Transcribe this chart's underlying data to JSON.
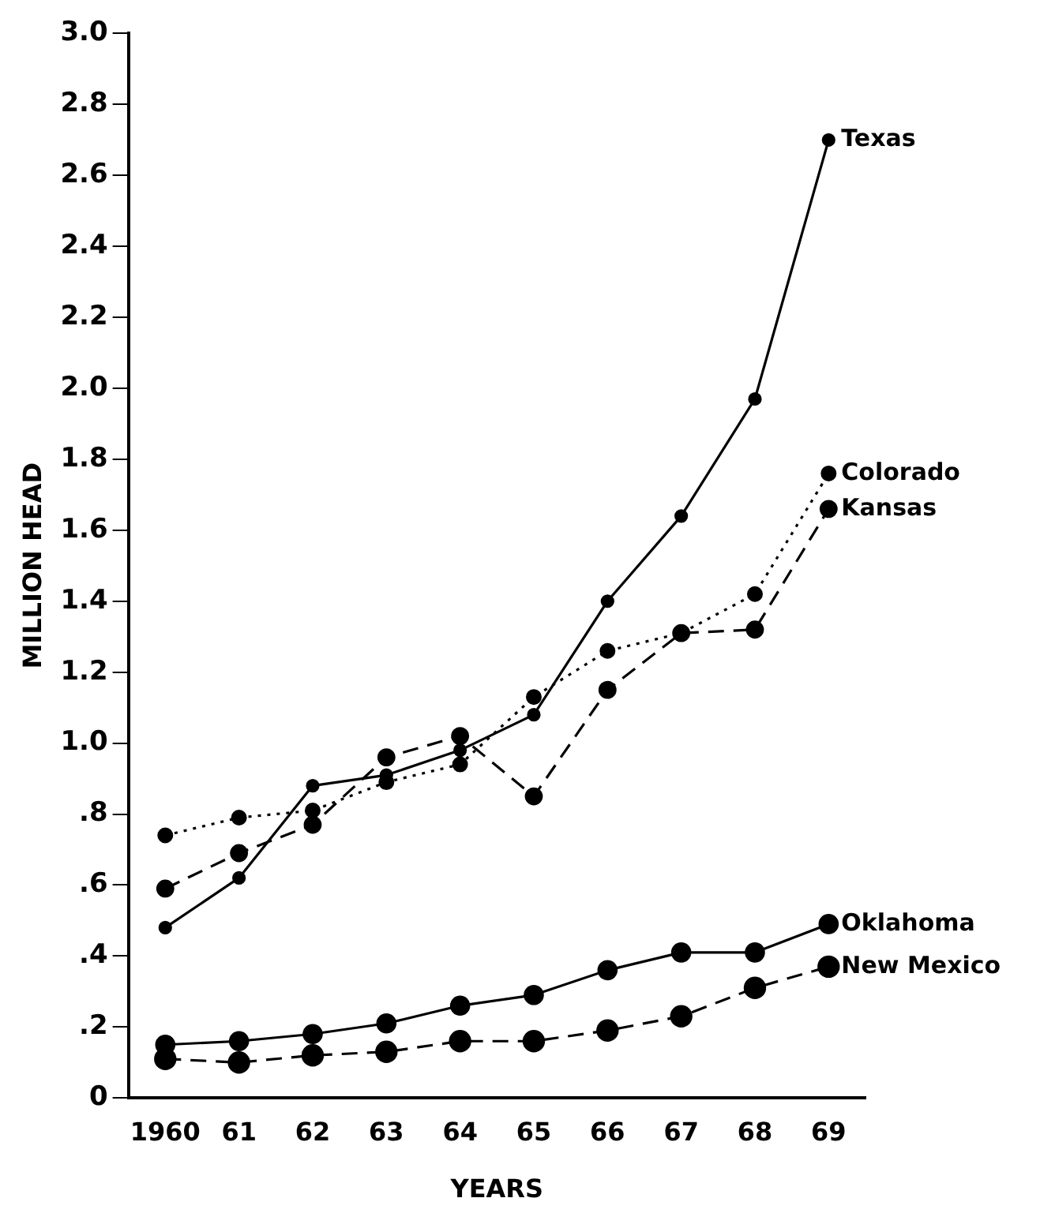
{
  "chart_data": {
    "type": "line",
    "xlabel": "YEARS",
    "ylabel": "MILLION HEAD",
    "categories": [
      "1960",
      "61",
      "62",
      "63",
      "64",
      "65",
      "66",
      "67",
      "68",
      "69"
    ],
    "series": [
      {
        "name": "Texas",
        "color": "#000000",
        "line_style": "solid",
        "values": [
          0.48,
          0.62,
          0.88,
          0.91,
          0.98,
          1.08,
          1.4,
          1.64,
          1.97,
          2.7
        ]
      },
      {
        "name": "Colorado",
        "color": "#000000",
        "line_style": "dotted",
        "values": [
          0.74,
          0.79,
          0.81,
          0.89,
          0.94,
          1.13,
          1.26,
          1.31,
          1.42,
          1.76
        ]
      },
      {
        "name": "Kansas",
        "color": "#000000",
        "line_style": "dashed",
        "values": [
          0.59,
          0.69,
          0.77,
          0.96,
          1.02,
          0.85,
          1.15,
          1.31,
          1.32,
          1.66
        ]
      },
      {
        "name": "Oklahoma",
        "color": "#000000",
        "line_style": "solid",
        "values": [
          0.15,
          0.16,
          0.18,
          0.21,
          0.26,
          0.29,
          0.36,
          0.41,
          0.41,
          0.49
        ]
      },
      {
        "name": "New Mexico",
        "color": "#000000",
        "line_style": "dashed",
        "values": [
          0.11,
          0.1,
          0.12,
          0.13,
          0.16,
          0.16,
          0.19,
          0.23,
          0.31,
          0.37
        ]
      }
    ],
    "ylim": [
      0,
      3.0
    ],
    "yticks": [
      0,
      {
        "value": 0.2,
        "label": ".2"
      },
      {
        "value": 0.4,
        "label": ".4"
      },
      {
        "value": 0.6,
        "label": ".6"
      },
      {
        "value": 0.8,
        "label": ".8"
      },
      {
        "value": 1.0,
        "label": "1.0"
      },
      {
        "value": 1.2,
        "label": "1.2"
      },
      {
        "value": 1.4,
        "label": "1.4"
      },
      {
        "value": 1.6,
        "label": "1.6"
      },
      {
        "value": 1.8,
        "label": "1.8"
      },
      {
        "value": 2.0,
        "label": "2.0"
      },
      {
        "value": 2.2,
        "label": "2.2"
      },
      {
        "value": 2.4,
        "label": "2.4"
      },
      {
        "value": 2.6,
        "label": "2.6"
      },
      {
        "value": 2.8,
        "label": "2.8"
      },
      {
        "value": 3.0,
        "label": "3.0"
      }
    ],
    "grid": false,
    "legend": false,
    "marker": "circle"
  }
}
